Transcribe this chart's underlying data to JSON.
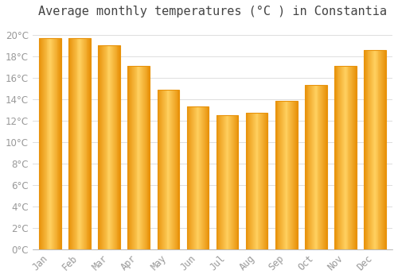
{
  "title": "Average monthly temperatures (°C ) in Constantia",
  "months": [
    "Jan",
    "Feb",
    "Mar",
    "Apr",
    "May",
    "Jun",
    "Jul",
    "Aug",
    "Sep",
    "Oct",
    "Nov",
    "Dec"
  ],
  "values": [
    19.7,
    19.7,
    19.0,
    17.1,
    14.9,
    13.3,
    12.5,
    12.7,
    13.8,
    15.3,
    17.1,
    18.6
  ],
  "bar_color_left": "#E8920A",
  "bar_color_center": "#FFD060",
  "bar_color_right": "#E8920A",
  "ylim": [
    0,
    21
  ],
  "yticks": [
    0,
    2,
    4,
    6,
    8,
    10,
    12,
    14,
    16,
    18,
    20
  ],
  "background_color": "#FFFFFF",
  "grid_color": "#DDDDDD",
  "title_fontsize": 11,
  "tick_fontsize": 8.5,
  "tick_color": "#999999",
  "bar_width": 0.75
}
